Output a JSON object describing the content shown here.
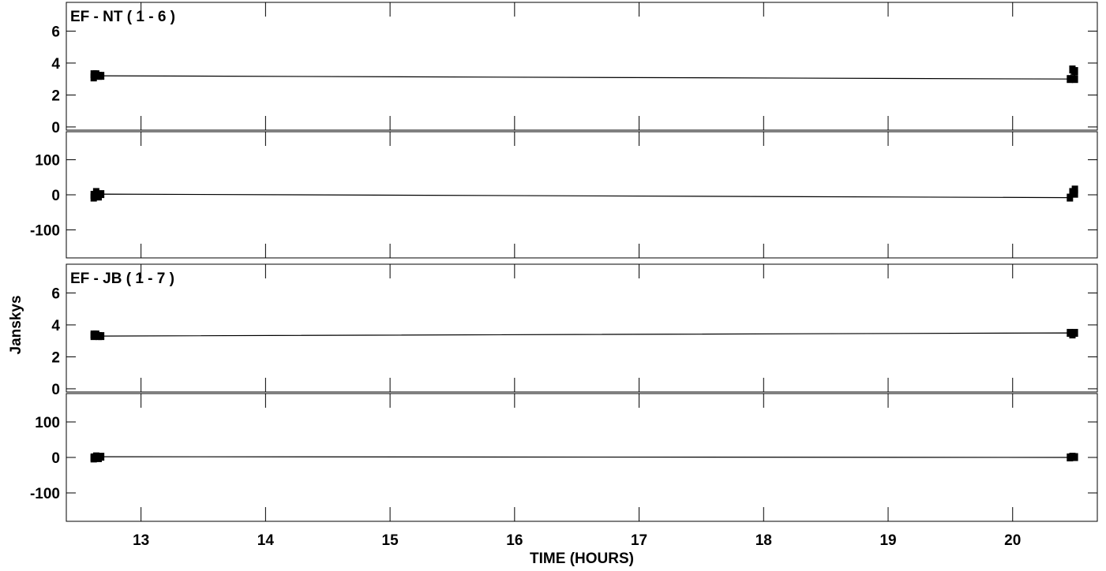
{
  "chart_data": {
    "type": "line",
    "xlabel": "TIME (HOURS)",
    "ylabel": "Janskys",
    "xlim": [
      12.4,
      20.68
    ],
    "xticks": [
      "13",
      "14",
      "15",
      "16",
      "17",
      "18",
      "19",
      "20"
    ],
    "panels": [
      {
        "title": "EF - NT ( 1 - 6 )",
        "amplitude": {
          "ylim": [
            -0.2,
            7.8
          ],
          "yticks": [
            "0",
            "2",
            "4",
            "6"
          ],
          "x": [
            12.62,
            12.62,
            12.64,
            12.66,
            12.68,
            20.46,
            20.48,
            20.5,
            20.5
          ],
          "y": [
            3.3,
            3.1,
            3.3,
            3.2,
            3.2,
            3.0,
            3.6,
            3.0,
            3.5
          ]
        },
        "phase": {
          "ylim": [
            -180,
            180
          ],
          "yticks": [
            "100",
            "0",
            "-100"
          ],
          "x": [
            12.62,
            12.62,
            12.64,
            12.66,
            12.68,
            20.46,
            20.48,
            20.5,
            20.5
          ],
          "y": [
            0,
            -8,
            8,
            -5,
            2,
            -8,
            8,
            15,
            3
          ]
        }
      },
      {
        "title": "EF - JB ( 1 - 7 )",
        "amplitude": {
          "ylim": [
            -0.2,
            7.8
          ],
          "yticks": [
            "0",
            "2",
            "4",
            "6"
          ],
          "x": [
            12.62,
            12.62,
            12.64,
            12.66,
            12.68,
            20.46,
            20.48,
            20.5
          ],
          "y": [
            3.4,
            3.3,
            3.4,
            3.3,
            3.3,
            3.5,
            3.4,
            3.5
          ]
        },
        "phase": {
          "ylim": [
            -180,
            180
          ],
          "yticks": [
            "100",
            "0",
            "-100"
          ],
          "x": [
            12.62,
            12.62,
            12.64,
            12.66,
            12.68,
            20.46,
            20.48,
            20.5
          ],
          "y": [
            0,
            -3,
            3,
            -2,
            2,
            0,
            2,
            1
          ]
        }
      }
    ]
  }
}
